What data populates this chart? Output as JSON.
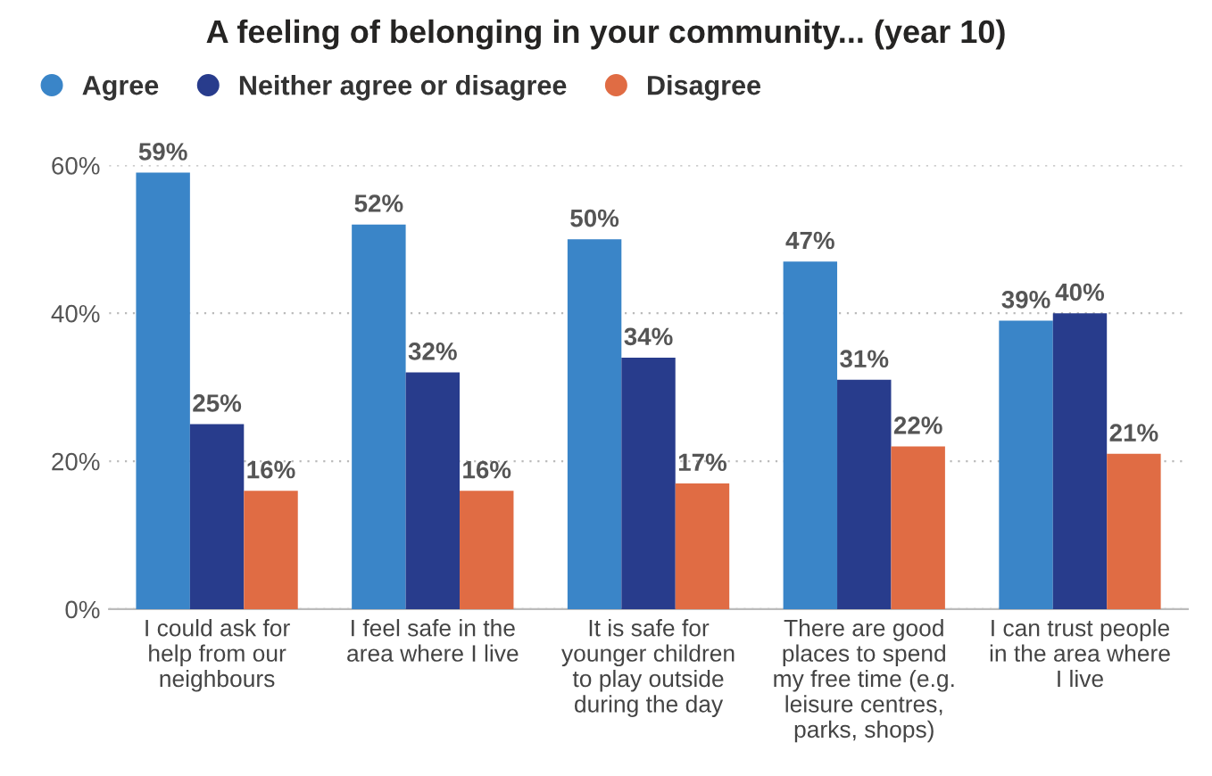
{
  "chart_data": {
    "type": "bar",
    "title": "A feeling of belonging in your community... (year 10)",
    "categories": [
      "I could ask for\nhelp from our\nneighbours",
      "I feel safe in the\narea where I live",
      "It is safe for\nyounger children\nto play outside\nduring the day",
      "There are good\nplaces to spend\nmy free time (e.g.\nleisure centres,\nparks, shops)",
      "I can trust people\nin the area where\nI live"
    ],
    "series": [
      {
        "name": "Agree",
        "color": "#3a85c8",
        "values": [
          59,
          52,
          50,
          47,
          39
        ],
        "value_labels": [
          "59%",
          "52%",
          "50%",
          "47%",
          "39%"
        ]
      },
      {
        "name": "Neither agree or disagree",
        "color": "#283c8c",
        "values": [
          25,
          32,
          34,
          31,
          40
        ],
        "value_labels": [
          "25%",
          "32%",
          "34%",
          "31%",
          "40%"
        ]
      },
      {
        "name": "Disagree",
        "color": "#e06c44",
        "values": [
          16,
          16,
          17,
          22,
          21
        ],
        "value_labels": [
          "16%",
          "16%",
          "17%",
          "22%",
          "21%"
        ]
      }
    ],
    "ylim": [
      0,
      60
    ],
    "yticks": [
      {
        "value": 0,
        "label": "0%"
      },
      {
        "value": 20,
        "label": "20%"
      },
      {
        "value": 40,
        "label": "40%"
      },
      {
        "value": 60,
        "label": "60%"
      }
    ],
    "grid": "y",
    "legend": "top left"
  }
}
